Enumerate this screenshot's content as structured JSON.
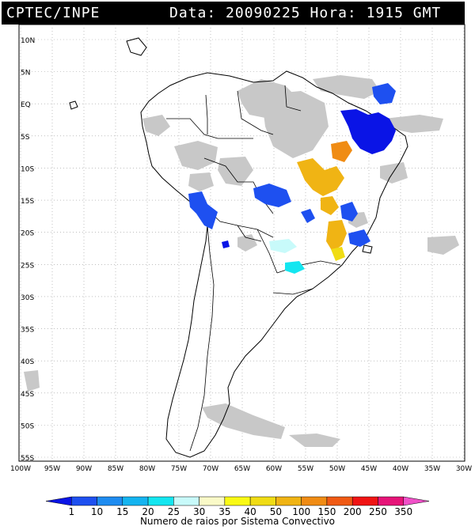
{
  "header": {
    "source": "CPTEC/INPE",
    "info": "Data: 20090225 Hora: 1915 GMT"
  },
  "map": {
    "lat_labels": [
      "10N",
      "5N",
      "EQ",
      "5S",
      "10S",
      "15S",
      "20S",
      "25S",
      "30S",
      "35S",
      "40S",
      "45S",
      "50S",
      "55S"
    ],
    "lon_labels": [
      "100W",
      "95W",
      "90W",
      "85W",
      "80W",
      "75W",
      "70W",
      "65W",
      "60W",
      "55W",
      "50W",
      "45W",
      "40W",
      "35W",
      "30W"
    ],
    "lat_range": [
      10,
      -55
    ],
    "lon_range": [
      -100,
      -30
    ],
    "gridlines": "dotted"
  },
  "colorbar": {
    "title": "Numero de raios por Sistema Convectivo",
    "ticks": [
      "1",
      "10",
      "15",
      "20",
      "25",
      "30",
      "35",
      "40",
      "50",
      "100",
      "150",
      "200",
      "250",
      "350"
    ],
    "colors": [
      "#0a14e6",
      "#1e50f0",
      "#1e8cf0",
      "#14b4f0",
      "#14e6f0",
      "#c8fafa",
      "#fafac8",
      "#fafa14",
      "#f0dc14",
      "#f0b414",
      "#f08c14",
      "#f05a14",
      "#f01414",
      "#e61478",
      "#f050c8"
    ]
  },
  "legend_colors": {
    "cloud": "#c8c8c8",
    "land_border": "#000000"
  }
}
